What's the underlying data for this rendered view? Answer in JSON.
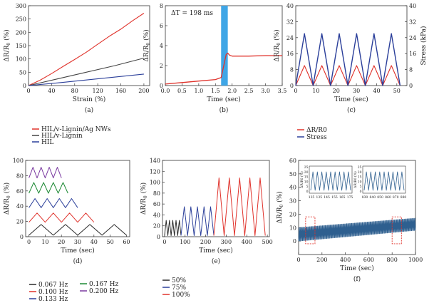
{
  "chart_data": [
    {
      "id": "a",
      "type": "line",
      "panel_label": "(a)",
      "xlabel": "Strain (%)",
      "ylabel": "ΔR/R0 (%)",
      "xlim": [
        0,
        210
      ],
      "ylim": [
        0,
        300
      ],
      "xticks": [
        "0",
        "40",
        "80",
        "120",
        "160",
        "200"
      ],
      "yticks": [
        "0",
        "50",
        "100",
        "150",
        "200",
        "250",
        "300"
      ],
      "series": [
        {
          "name": "HIL/v-Lignin/Ag NWs",
          "color": "#e0322b",
          "x": [
            0,
            20,
            40,
            60,
            80,
            100,
            120,
            140,
            160,
            180,
            200
          ],
          "y": [
            0,
            20,
            45,
            72,
            98,
            125,
            155,
            185,
            212,
            243,
            272
          ]
        },
        {
          "name": "HIL/v-Lignin",
          "color": "#444444",
          "x": [
            0,
            50,
            100,
            150,
            200
          ],
          "y": [
            0,
            25,
            50,
            75,
            103
          ]
        },
        {
          "name": "HIL",
          "color": "#2b3f9a",
          "x": [
            0,
            50,
            100,
            150,
            200
          ],
          "y": [
            0,
            10,
            21,
            32,
            43
          ]
        }
      ],
      "legend": "below"
    },
    {
      "id": "b",
      "type": "line",
      "panel_label": "(b)",
      "xlabel": "Time (sec)",
      "ylabel": "ΔR/R0 (%)",
      "xlim": [
        0,
        3.5
      ],
      "ylim": [
        0,
        8
      ],
      "xticks": [
        "0.0",
        "0.5",
        "1.0",
        "1.5",
        "2.0",
        "2.5",
        "3.0",
        "3.5"
      ],
      "yticks": [
        "0",
        "2",
        "4",
        "6",
        "8"
      ],
      "annotation": "ΔT = 198 ms",
      "highlight": [
        1.67,
        1.87
      ],
      "highlight_color": "#3fa6e6",
      "series": [
        {
          "name": "response",
          "color": "#e0322b",
          "x": [
            0,
            0.5,
            1.0,
            1.5,
            1.67,
            1.75,
            1.82,
            1.87,
            1.92,
            2.0,
            2.5,
            3.0,
            3.5
          ],
          "y": [
            0.15,
            0.3,
            0.45,
            0.6,
            0.8,
            2.0,
            3.1,
            3.25,
            3.05,
            2.95,
            2.95,
            3.0,
            3.0
          ]
        }
      ]
    },
    {
      "id": "c",
      "type": "line",
      "panel_label": "(c)",
      "xlabel": "Time (sec)",
      "ylabel": "ΔR/R0 (%)",
      "y2label": "Stress (kPa)",
      "xlim": [
        0,
        55
      ],
      "ylim": [
        0,
        40
      ],
      "y2lim": [
        0,
        40
      ],
      "xticks": [
        "0",
        "10",
        "20",
        "30",
        "40",
        "50"
      ],
      "yticks": [
        "0",
        "8",
        "16",
        "24",
        "32",
        "40"
      ],
      "y2ticks": [
        "0",
        "8",
        "16",
        "24",
        "32",
        "40"
      ],
      "cycles": 6,
      "period": 8.6,
      "first_peak": 4.3,
      "series": [
        {
          "name": "ΔR/R0",
          "color": "#e0322b",
          "peak": 10
        },
        {
          "name": "Stress",
          "color": "#2b3f9a",
          "peak": 26
        }
      ],
      "legend": "below"
    },
    {
      "id": "d",
      "type": "line",
      "panel_label": "(d)",
      "xlabel": "Time (sec)",
      "ylabel": "ΔR/R0 (%)",
      "xlim": [
        -2,
        62
      ],
      "ylim": [
        0,
        100
      ],
      "xticks": [
        "0",
        "10",
        "20",
        "30",
        "40",
        "50",
        "60"
      ],
      "yticks": [
        "0",
        "20",
        "40",
        "60",
        "80",
        "100"
      ],
      "series": [
        {
          "name": "0.067 Hz",
          "color": "#2b2b2b",
          "offset": 2,
          "amp": 14,
          "period": 15,
          "end": 60
        },
        {
          "name": "0.100 Hz",
          "color": "#e0322b",
          "offset": 19,
          "amp": 12,
          "period": 10,
          "end": 40
        },
        {
          "name": "0.133 Hz",
          "color": "#2b3f9a",
          "offset": 38,
          "amp": 12,
          "period": 7.5,
          "end": 30
        },
        {
          "name": "0.167 Hz",
          "color": "#1e8a35",
          "offset": 57,
          "amp": 14,
          "period": 6,
          "end": 24
        },
        {
          "name": "0.200 Hz",
          "color": "#7a3aa0",
          "offset": 77,
          "amp": 14,
          "period": 5,
          "end": 20
        }
      ],
      "legend": "below"
    },
    {
      "id": "e",
      "type": "line",
      "panel_label": "(e)",
      "xlabel": "Time (sec)",
      "ylabel": "ΔR/R0 (%)",
      "xlim": [
        -10,
        510
      ],
      "ylim": [
        0,
        140
      ],
      "xticks": [
        "0",
        "100",
        "200",
        "300",
        "400",
        "500"
      ],
      "yticks": [
        "0",
        "20",
        "40",
        "60",
        "80",
        "100",
        "120",
        "140"
      ],
      "series": [
        {
          "name": "50%",
          "color": "#2b2b2b",
          "start": 0,
          "end": 80,
          "cycles": 5,
          "peak": 30
        },
        {
          "name": "75%",
          "color": "#2b3f9a",
          "start": 80,
          "end": 240,
          "cycles": 5,
          "peak": 55
        },
        {
          "name": "100%",
          "color": "#e0322b",
          "start": 240,
          "end": 490,
          "cycles": 5,
          "peak": 108
        }
      ],
      "legend": "below"
    },
    {
      "id": "f",
      "type": "line",
      "panel_label": "(f)",
      "xlabel": "Time (sec)",
      "ylabel": "ΔR/R0 (%)",
      "xlim": [
        0,
        1000
      ],
      "ylim": [
        -10,
        60
      ],
      "xticks": [
        "0",
        "200",
        "400",
        "600",
        "800",
        "1000"
      ],
      "yticks": [
        "0",
        "10",
        "20",
        "30",
        "40",
        "50",
        "60"
      ],
      "band_color": "#2e5f8f",
      "band_low_start": 0,
      "band_high_start": 10,
      "band_low_end": 8,
      "band_high_end": 17,
      "zoom_regions": [
        [
          60,
          140
        ],
        [
          800,
          880
        ]
      ],
      "zoom_color": "#e0322b",
      "insets": [
        {
          "ylabel": "ΔR/R0 (%)",
          "xticks": [
            "125",
            "135",
            "145",
            "155",
            "165",
            "175"
          ],
          "yticks": [
            "0",
            "5",
            "10",
            "15",
            "20",
            "25"
          ],
          "peaks": 9
        },
        {
          "ylabel": "ΔR/R0 (%)",
          "xticks": [
            "830",
            "840",
            "850",
            "860",
            "870",
            "880"
          ],
          "yticks": [
            "0",
            "5",
            "10",
            "15",
            "20",
            "25"
          ],
          "peaks": 9
        }
      ]
    }
  ],
  "legend_a": [
    "HIL/v-Lignin/Ag NWs",
    "HIL/v-Lignin",
    "HIL"
  ],
  "legend_c": [
    "ΔR/R0",
    "Stress"
  ],
  "legend_d": [
    "0.067 Hz",
    "0.100 Hz",
    "0.133 Hz",
    "0.167 Hz",
    "0.200 Hz"
  ],
  "legend_e": [
    "50%",
    "75%",
    "100%"
  ]
}
